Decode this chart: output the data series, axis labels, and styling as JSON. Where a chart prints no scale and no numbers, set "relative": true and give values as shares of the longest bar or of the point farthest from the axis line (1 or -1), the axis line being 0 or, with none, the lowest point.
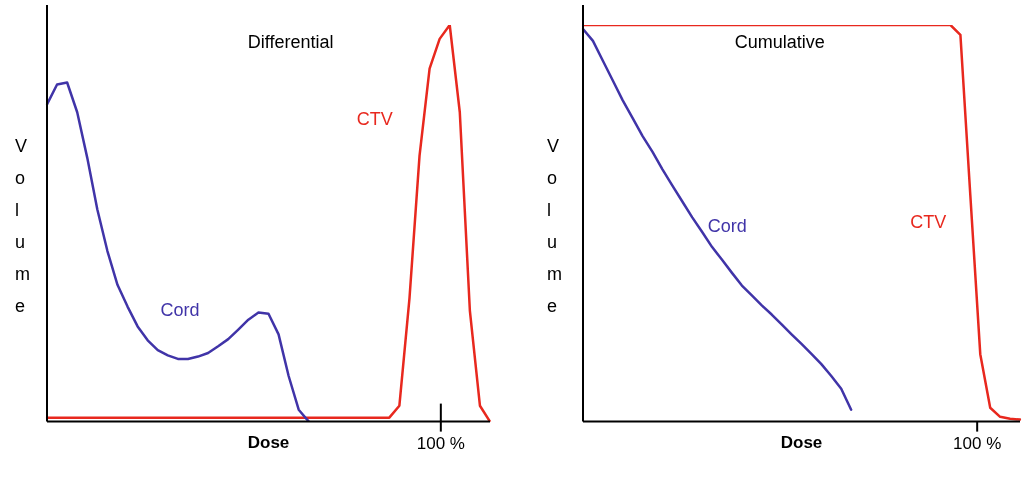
{
  "chart_data": [
    {
      "type": "line",
      "title": "Differential",
      "xlabel": "Dose",
      "ylabel": "Volume",
      "relative": true,
      "marker": "none",
      "line_style": "solid",
      "annotations": [
        "100 %"
      ],
      "categories": [
        null,
        null,
        null,
        null,
        null,
        null,
        null,
        null,
        null,
        null,
        null,
        null,
        null,
        null,
        null,
        null,
        null,
        null,
        null,
        null,
        null,
        null,
        null,
        null,
        null,
        null,
        null,
        null,
        null,
        null,
        null,
        null,
        null,
        null,
        null,
        null,
        null,
        null,
        null,
        null,
        null,
        null,
        null,
        null,
        null
      ],
      "series": [
        {
          "name": "Cord",
          "color": "#4034a8",
          "values": [
            0.8,
            0.85,
            0.855,
            0.78,
            0.665,
            0.535,
            0.43,
            0.345,
            0.29,
            0.24,
            0.205,
            0.18,
            0.167,
            0.158,
            0.158,
            0.164,
            0.173,
            0.19,
            0.208,
            0.232,
            0.257,
            0.275,
            0.272,
            0.22,
            0.115,
            0.03,
            0,
            null,
            null,
            null,
            null,
            null,
            null,
            null,
            null,
            null,
            null,
            null,
            null,
            null,
            null,
            null,
            null,
            null,
            null
          ]
        },
        {
          "name": "CTV",
          "color": "#e8281e",
          "values": [
            0.01,
            0.01,
            0.01,
            0.01,
            0.01,
            0.01,
            0.01,
            0.01,
            0.01,
            0.01,
            0.01,
            0.01,
            0.01,
            0.01,
            0.01,
            0.01,
            0.01,
            0.01,
            0.01,
            0.01,
            0.01,
            0.01,
            0.01,
            0.01,
            0.01,
            0.01,
            0.01,
            0.01,
            0.01,
            0.01,
            0.01,
            0.01,
            0.01,
            0.01,
            0.01,
            0.04,
            0.31,
            0.67,
            0.89,
            0.965,
            1,
            0.78,
            0.28,
            0.04,
            0
          ]
        }
      ]
    },
    {
      "type": "line",
      "title": "Cumulative",
      "xlabel": "Dose",
      "ylabel": "Volume",
      "relative": true,
      "marker": "none",
      "line_style": "solid",
      "annotations": [
        "100 %"
      ],
      "categories": [
        null,
        null,
        null,
        null,
        null,
        null,
        null,
        null,
        null,
        null,
        null,
        null,
        null,
        null,
        null,
        null,
        null,
        null,
        null,
        null,
        null,
        null,
        null,
        null,
        null,
        null,
        null,
        null,
        null,
        null,
        null,
        null,
        null,
        null,
        null,
        null,
        null,
        null,
        null,
        null,
        null,
        null,
        null,
        null,
        null
      ],
      "series": [
        {
          "name": "Cord",
          "color": "#4034a8",
          "values": [
            0.99,
            0.96,
            0.91,
            0.86,
            0.81,
            0.765,
            0.72,
            0.68,
            0.636,
            0.595,
            0.555,
            0.515,
            0.478,
            0.44,
            0.408,
            0.375,
            0.343,
            0.318,
            0.293,
            0.27,
            0.245,
            0.22,
            0.196,
            0.171,
            0.145,
            0.115,
            0.083,
            0.03,
            null,
            null,
            null,
            null,
            null,
            null,
            null,
            null,
            null,
            null,
            null,
            null,
            null,
            null,
            null,
            null,
            null
          ]
        },
        {
          "name": "CTV",
          "color": "#e8281e",
          "values": [
            1,
            1,
            1,
            1,
            1,
            1,
            1,
            1,
            1,
            1,
            1,
            1,
            1,
            1,
            1,
            1,
            1,
            1,
            1,
            1,
            1,
            1,
            1,
            1,
            1,
            1,
            1,
            1,
            1,
            1,
            1,
            1,
            1,
            1,
            1,
            1,
            1,
            1,
            0.975,
            0.57,
            0.17,
            0.035,
            0.012,
            0.007,
            0.005
          ]
        }
      ]
    }
  ]
}
